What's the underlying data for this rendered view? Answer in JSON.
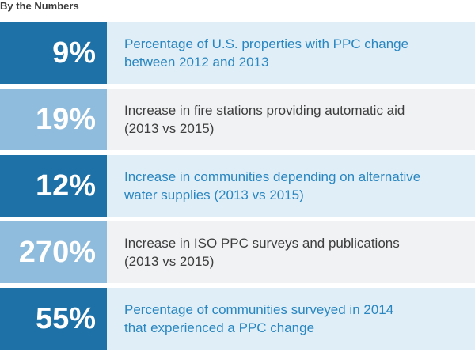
{
  "title": "By the Numbers",
  "stats": [
    {
      "value": "9%",
      "text": "Percentage of U.S. properties with PPC change\nbetween 2012 and 2013"
    },
    {
      "value": "19%",
      "text": "Increase in fire stations providing automatic aid\n(2013 vs 2015)"
    },
    {
      "value": "12%",
      "text": "Increase in communities depending on alternative\nwater supplies (2013 vs 2015)"
    },
    {
      "value": "270%",
      "text": "Increase in ISO PPC surveys and publications\n(2013 vs 2015)"
    },
    {
      "value": "55%",
      "text": "Percentage of communities surveyed in 2014\nthat experienced a PPC change"
    }
  ],
  "colors": {
    "dark_number_bg": "#1d71a6",
    "light_number_bg": "#8fbcdc",
    "dark_text_bg": "#dfeef7",
    "light_text_bg": "#f0f2f4",
    "accent_text": "#2a86c0",
    "body_text": "#3d3d3d"
  }
}
